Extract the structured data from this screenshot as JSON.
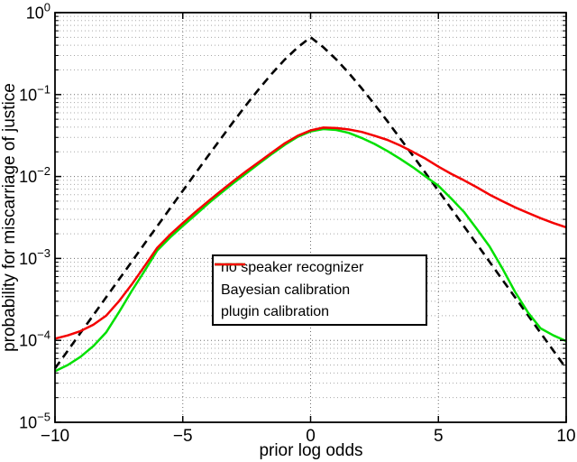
{
  "figure": {
    "background": "#ffffff",
    "frame_color": "#000000",
    "grid": {
      "major_color": "#6e6e6e",
      "minor_color": "#a8a8a8",
      "style": "dotted"
    },
    "x_axis": {
      "label": "prior log odds",
      "min": -10,
      "max": 10,
      "ticks": [
        -10,
        -5,
        0,
        5,
        10
      ],
      "tick_labels": [
        "−10",
        "−5",
        "0",
        "5",
        "10"
      ]
    },
    "y_axis": {
      "label": "probability for miscarriage of justice",
      "scale": "log10",
      "base": "10",
      "tick_exponents": [
        "0",
        "−1",
        "−2",
        "−3",
        "−4",
        "−5"
      ],
      "tick_exponent_values": [
        0,
        -1,
        -2,
        -3,
        -4,
        -5
      ]
    },
    "legend": {
      "items": [
        {
          "label": "no speaker recognizer",
          "color": "#000000",
          "style": "dashed"
        },
        {
          "label": "Bayesian calibration",
          "color": "#00e000",
          "style": "solid"
        },
        {
          "label": "plugin calibration",
          "color": "#f40000",
          "style": "solid"
        }
      ]
    }
  },
  "chart_data": {
    "type": "line",
    "title": "",
    "xlabel": "prior log odds",
    "ylabel": "probability for miscarriage of justice",
    "xlim": [
      -10,
      10
    ],
    "ylim": [
      1e-05,
      1
    ],
    "y_scale": "log",
    "grid": "dotted major and minor gridlines (log y), dotted vertical lines at x ticks",
    "legend_position": "inside lower-center",
    "x": [
      -10,
      -9.5,
      -9,
      -8.5,
      -8,
      -7.5,
      -7,
      -6.5,
      -6,
      -5.5,
      -5,
      -4.5,
      -4,
      -3.5,
      -3,
      -2.5,
      -2,
      -1.5,
      -1,
      -0.5,
      0,
      0.5,
      1,
      1.5,
      2,
      2.5,
      3,
      3.5,
      4,
      4.5,
      5,
      5.5,
      6,
      6.5,
      7,
      7.5,
      8,
      8.5,
      9,
      9.5,
      10
    ],
    "series": [
      {
        "name": "no speaker recognizer",
        "color": "#000000",
        "line_style": "dashed",
        "line_width": 2.6,
        "values": [
          4.54e-05,
          7.48e-05,
          0.0001234,
          0.000203,
          0.000335,
          0.000553,
          0.000911,
          0.001503,
          0.002473,
          0.00407,
          0.006693,
          0.01099,
          0.01799,
          0.02931,
          0.04743,
          0.07586,
          0.1192,
          0.1824,
          0.2689,
          0.3775,
          0.5,
          0.3775,
          0.2689,
          0.1824,
          0.1192,
          0.07586,
          0.04743,
          0.02931,
          0.01799,
          0.01099,
          0.006693,
          0.00407,
          0.002473,
          0.001503,
          0.000911,
          0.000553,
          0.000335,
          0.000203,
          0.0001234,
          7.48e-05,
          4.54e-05
        ]
      },
      {
        "name": "Bayesian calibration",
        "color": "#00e000",
        "line_style": "solid",
        "line_width": 2.5,
        "values": [
          4.2e-05,
          5e-05,
          6.3e-05,
          8.5e-05,
          0.000125,
          0.00022,
          0.0004,
          0.0007,
          0.00125,
          0.0018,
          0.0025,
          0.0034,
          0.0047,
          0.0063,
          0.0084,
          0.011,
          0.0145,
          0.019,
          0.0245,
          0.0305,
          0.0355,
          0.038,
          0.037,
          0.034,
          0.0295,
          0.025,
          0.0205,
          0.0165,
          0.013,
          0.01,
          0.0077,
          0.0054,
          0.0037,
          0.0023,
          0.0014,
          0.00076,
          0.00039,
          0.00022,
          0.00014,
          0.000115,
          9.8e-05
        ]
      },
      {
        "name": "plugin calibration",
        "color": "#f40000",
        "line_style": "solid",
        "line_width": 2.5,
        "values": [
          0.000105,
          0.000115,
          0.00013,
          0.000155,
          0.0002,
          0.0003,
          0.00048,
          0.0008,
          0.00135,
          0.00195,
          0.0027,
          0.0037,
          0.005,
          0.0067,
          0.0089,
          0.0117,
          0.0152,
          0.0198,
          0.0255,
          0.0315,
          0.0365,
          0.0395,
          0.039,
          0.0375,
          0.035,
          0.0315,
          0.028,
          0.024,
          0.02,
          0.0165,
          0.0132,
          0.0108,
          0.009,
          0.0074,
          0.006,
          0.005,
          0.0042,
          0.0036,
          0.0031,
          0.0027,
          0.0024
        ]
      }
    ]
  }
}
